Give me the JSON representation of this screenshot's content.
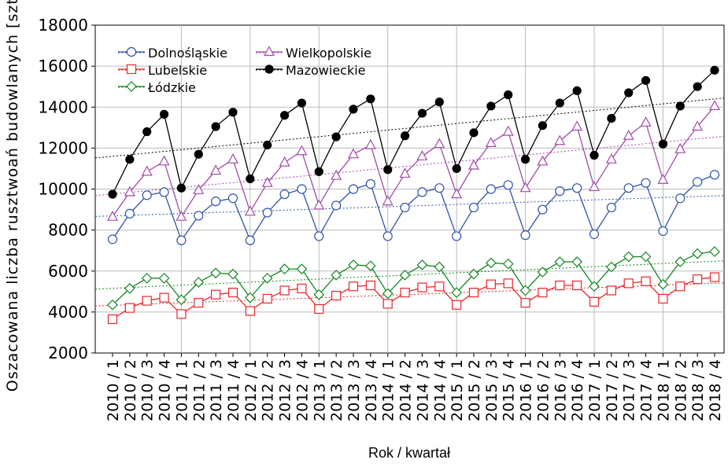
{
  "chart_data": {
    "type": "line",
    "y_label": "Oszacowana liczba rusztwoań budowlanych [szt.]",
    "x_label": "Rok / kwartał",
    "categories": [
      "2010 / 1",
      "2010 / 2",
      "2010 / 3",
      "2010 / 4",
      "2011 / 1",
      "2011 / 2",
      "2011 / 3",
      "2011 / 4",
      "2012 / 1",
      "2012 / 2",
      "2012 / 3",
      "2012 / 4",
      "2013 / 1",
      "2013 / 2",
      "2013 / 3",
      "2013 / 4",
      "2014 / 1",
      "2014 / 2",
      "2014 / 3",
      "2014 / 4",
      "2015 / 1",
      "2015 / 2",
      "2015 / 3",
      "2015 / 4",
      "2016 / 1",
      "2016 / 2",
      "2016 / 3",
      "2016 / 4",
      "2017 / 1",
      "2017 / 2",
      "2017 / 3",
      "2017 / 4",
      "2018 / 1",
      "2018 / 2",
      "2018 / 3",
      "2018 / 4"
    ],
    "series": [
      {
        "name": "Dolnośląskie",
        "color": "#2f52a8",
        "marker": "circle",
        "values": [
          7550,
          8800,
          9700,
          9850,
          7500,
          8700,
          9400,
          9550,
          7500,
          8850,
          9750,
          10000,
          7700,
          9200,
          10000,
          10250,
          7700,
          9100,
          9850,
          10050,
          7700,
          9100,
          10000,
          10200,
          7750,
          9000,
          9900,
          10050,
          7800,
          9100,
          10050,
          10300,
          7950,
          9550,
          10350,
          10700
        ]
      },
      {
        "name": "Lubelskie",
        "color": "#e8262a",
        "marker": "square",
        "values": [
          3650,
          4200,
          4550,
          4700,
          3900,
          4450,
          4850,
          4950,
          4050,
          4650,
          5050,
          5150,
          4150,
          4800,
          5250,
          5300,
          4400,
          4950,
          5200,
          5250,
          4350,
          4950,
          5350,
          5400,
          4450,
          4950,
          5300,
          5300,
          4500,
          5050,
          5400,
          5500,
          4650,
          5250,
          5600,
          5700
        ]
      },
      {
        "name": "Łódzkie",
        "color": "#13861f",
        "marker": "diamond",
        "values": [
          4350,
          5150,
          5650,
          5650,
          4600,
          5450,
          5900,
          5850,
          4700,
          5650,
          6100,
          6100,
          4850,
          5800,
          6300,
          6250,
          4900,
          5800,
          6300,
          6200,
          4950,
          5850,
          6400,
          6350,
          5050,
          5950,
          6450,
          6450,
          5250,
          6200,
          6700,
          6700,
          5350,
          6450,
          6850,
          6950
        ]
      },
      {
        "name": "Wielkopolskie",
        "color": "#a24aa8",
        "marker": "triangle",
        "values": [
          8650,
          9850,
          10850,
          11350,
          8650,
          9950,
          10900,
          11450,
          8900,
          10300,
          11300,
          11850,
          9200,
          10650,
          11700,
          12150,
          9400,
          10750,
          11600,
          12200,
          9750,
          11150,
          12250,
          12800,
          10050,
          11350,
          12350,
          13050,
          10100,
          11450,
          12600,
          13250,
          10450,
          11950,
          13050,
          14050
        ]
      },
      {
        "name": "Mazowieckie",
        "color": "#000000",
        "marker": "filled-circle",
        "values": [
          9750,
          11450,
          12800,
          13650,
          10050,
          11700,
          13050,
          13750,
          10500,
          12150,
          13600,
          14200,
          10850,
          12550,
          13900,
          14400,
          10950,
          12600,
          13700,
          14250,
          11000,
          12750,
          14050,
          14600,
          11450,
          13100,
          14200,
          14800,
          11650,
          13450,
          14700,
          15300,
          12200,
          14050,
          15000,
          15800
        ]
      }
    ],
    "ylim": [
      2000,
      18000
    ],
    "yticks": [
      2000,
      4000,
      6000,
      8000,
      10000,
      12000,
      14000,
      16000,
      18000
    ],
    "grid": true,
    "trendline": true,
    "legend": "upper left"
  }
}
